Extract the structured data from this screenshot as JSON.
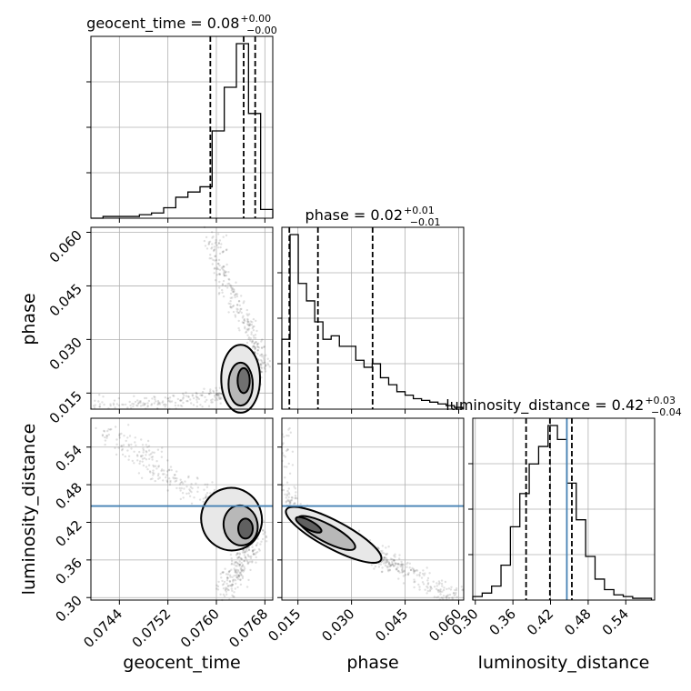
{
  "chart_data": {
    "type": "corner",
    "parameters": [
      "geocent_time",
      "phase",
      "luminosity_distance"
    ],
    "axis_labels": {
      "geocent_time": "geocent_time",
      "phase": "phase",
      "luminosity_distance": "luminosity_distance"
    },
    "ranges": {
      "geocent_time": [
        0.07393,
        0.07693
      ],
      "phase": [
        0.0105,
        0.0614
      ],
      "luminosity_distance": [
        0.296,
        0.586
      ]
    },
    "ticks": {
      "geocent_time": [
        "0.0744",
        "0.0752",
        "0.0760",
        "0.0768"
      ],
      "phase": [
        "0.015",
        "0.030",
        "0.045",
        "0.060"
      ],
      "luminosity_distance": [
        "0.30",
        "0.36",
        "0.42",
        "0.48",
        "0.54"
      ]
    },
    "tick_values": {
      "geocent_time": [
        0.0744,
        0.0752,
        0.076,
        0.0768
      ],
      "phase": [
        0.015,
        0.03,
        0.045,
        0.06
      ],
      "luminosity_distance": [
        0.3,
        0.36,
        0.42,
        0.48,
        0.54
      ]
    },
    "titles": [
      {
        "param": "geocent_time",
        "prefix": "geocent_time = 0.08",
        "plus": "+0.00",
        "minus": "−0.00"
      },
      {
        "param": "phase",
        "prefix": "phase = 0.02",
        "plus": "+0.01",
        "minus": "−0.01"
      },
      {
        "param": "luminosity_distance",
        "prefix": "luminosity_distance = 0.42",
        "plus": "+0.03",
        "minus": "−0.04"
      }
    ],
    "quantiles": {
      "geocent_time": [
        0.0759,
        0.07645,
        0.07664
      ],
      "phase": [
        0.0126,
        0.0206,
        0.0359
      ],
      "luminosity_distance": [
        0.381,
        0.419,
        0.454
      ]
    },
    "truths": {
      "luminosity_distance": 0.446
    },
    "histograms": {
      "geocent_time": {
        "bins": [
          0.07393,
          0.07413,
          0.07433,
          0.07453,
          0.07473,
          0.07493,
          0.07513,
          0.07533,
          0.07553,
          0.07573,
          0.07593,
          0.07613,
          0.07633,
          0.07653,
          0.07673,
          0.07693
        ],
        "counts": [
          0,
          1,
          1,
          1,
          2,
          3,
          6,
          12,
          15,
          18,
          50,
          75,
          100,
          60,
          5
        ]
      },
      "phase": {
        "bins": [
          0.0105,
          0.0128,
          0.0151,
          0.0174,
          0.0197,
          0.022,
          0.0243,
          0.0266,
          0.0289,
          0.0312,
          0.0335,
          0.0358,
          0.0381,
          0.0404,
          0.0427,
          0.045,
          0.0473,
          0.0496,
          0.0519,
          0.0542,
          0.0565,
          0.0588,
          0.0611
        ],
        "counts": [
          40,
          100,
          72,
          62,
          50,
          40,
          42,
          36,
          36,
          28,
          24,
          26,
          18,
          14,
          10,
          8,
          6,
          5,
          4,
          3,
          2,
          1
        ]
      },
      "luminosity_distance": {
        "bins": [
          0.296,
          0.311,
          0.326,
          0.341,
          0.356,
          0.371,
          0.386,
          0.401,
          0.416,
          0.431,
          0.446,
          0.461,
          0.476,
          0.491,
          0.506,
          0.521,
          0.536,
          0.551,
          0.566,
          0.581
        ],
        "counts": [
          2,
          4,
          8,
          20,
          42,
          61,
          78,
          88,
          100,
          92,
          67,
          46,
          25,
          12,
          6,
          3,
          2,
          1,
          1
        ]
      }
    },
    "grid": true
  }
}
